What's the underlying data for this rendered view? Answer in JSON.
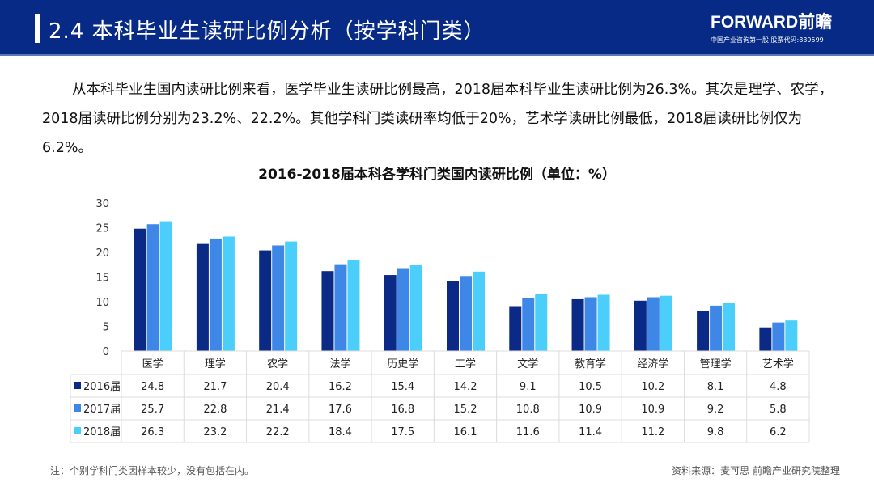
{
  "header": {
    "title": "2.4 本科毕业生读研比例分析（按学科门类）",
    "logo": "FORWARD前瞻",
    "logo_sub": "中国产业咨询第一股  股票代码:839599"
  },
  "paragraph": "从本科毕业生国内读研比例来看，医学毕业生读研比例最高，2018届本科毕业生读研比例为26.3%。其次是理学、农学，2018届读研比例分别为23.2%、22.2%。其他学科门类读研率均低于20%，艺术学读研比例最低，2018届读研比例仅为6.2%。",
  "footer": {
    "note": "注：个别学科门类因样本较少，没有包括在内。",
    "source": "资料来源：麦可思  前瞻产业研究院整理"
  },
  "chart_data": {
    "type": "bar",
    "title": "2016-2018届本科各学科门类国内读研比例（单位：%）",
    "categories": [
      "医学",
      "理学",
      "农学",
      "法学",
      "历史学",
      "工学",
      "文学",
      "教育学",
      "经济学",
      "管理学",
      "艺术学"
    ],
    "series": [
      {
        "name": "2016届",
        "color": "#0b2a86",
        "values": [
          24.8,
          21.7,
          20.4,
          16.2,
          15.4,
          14.2,
          9.1,
          10.5,
          10.2,
          8.1,
          4.8
        ]
      },
      {
        "name": "2017届",
        "color": "#3f87e6",
        "values": [
          25.7,
          22.8,
          21.4,
          17.6,
          16.8,
          15.2,
          10.8,
          10.9,
          10.9,
          9.2,
          5.8
        ]
      },
      {
        "name": "2018届",
        "color": "#4ccefb",
        "values": [
          26.3,
          23.2,
          22.2,
          18.4,
          17.5,
          16.1,
          11.6,
          11.4,
          11.2,
          9.8,
          6.2
        ]
      }
    ],
    "yticks": [
      0,
      5,
      10,
      15,
      20,
      25,
      30
    ],
    "ylim": [
      0,
      30
    ],
    "legend": "data-table"
  }
}
